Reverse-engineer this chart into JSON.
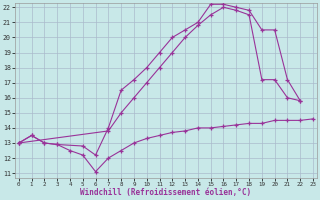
{
  "xlabel": "Windchill (Refroidissement éolien,°C)",
  "bg_color": "#c8e8e8",
  "grid_color": "#aabbcc",
  "line_color": "#993399",
  "x_min": 0,
  "x_max": 23,
  "y_min": 11,
  "y_max": 22,
  "line1_x": [
    0,
    1,
    2,
    3,
    4,
    5,
    6,
    7,
    8,
    9,
    10,
    11,
    12,
    13,
    14,
    15,
    16,
    17,
    18,
    19,
    20,
    21,
    22,
    23
  ],
  "line1_y": [
    13.0,
    13.5,
    13.0,
    12.9,
    12.5,
    12.2,
    11.1,
    12.0,
    12.5,
    13.0,
    13.3,
    13.5,
    13.7,
    13.8,
    14.0,
    14.0,
    14.1,
    14.2,
    14.3,
    14.3,
    14.5,
    14.5,
    14.5,
    14.6
  ],
  "line2_x": [
    0,
    1,
    2,
    3,
    5,
    6,
    7,
    8,
    9,
    10,
    11,
    12,
    13,
    14,
    15,
    16,
    17,
    18,
    19,
    20,
    21,
    22
  ],
  "line2_y": [
    13.0,
    13.5,
    13.0,
    12.9,
    12.8,
    12.2,
    14.0,
    16.5,
    17.2,
    18.0,
    19.0,
    20.0,
    20.5,
    21.0,
    22.2,
    22.2,
    22.0,
    21.8,
    20.5,
    20.5,
    17.2,
    15.8
  ],
  "line3_x": [
    0,
    7,
    8,
    9,
    10,
    11,
    12,
    13,
    14,
    15,
    16,
    17,
    18,
    19,
    20,
    21,
    22
  ],
  "line3_y": [
    13.0,
    13.8,
    15.0,
    16.0,
    17.0,
    18.0,
    19.0,
    20.0,
    20.8,
    21.5,
    22.0,
    21.8,
    21.5,
    17.2,
    17.2,
    16.0,
    15.8
  ]
}
